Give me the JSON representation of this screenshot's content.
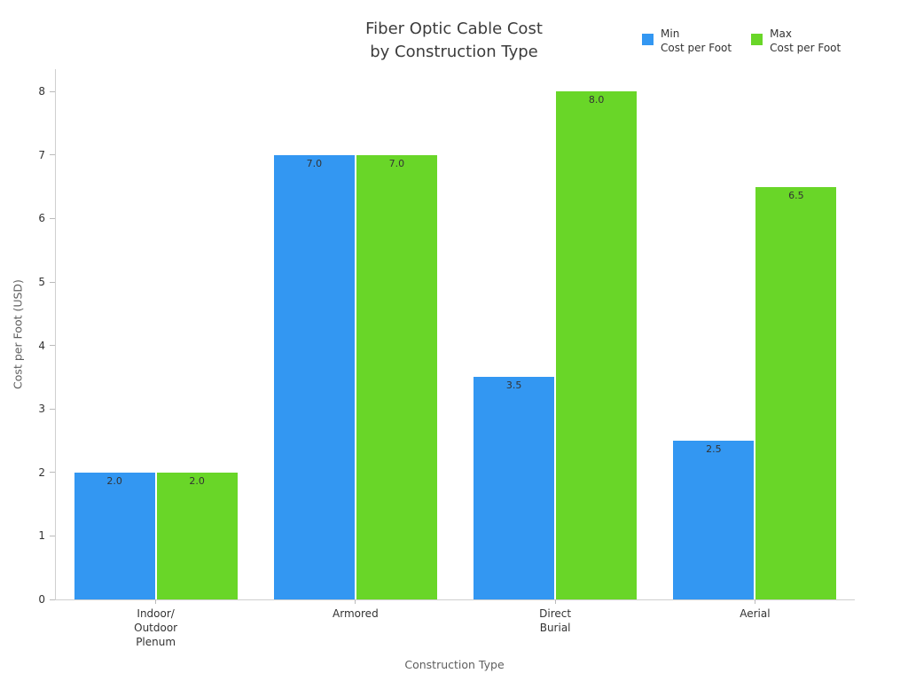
{
  "title": {
    "line1": "Fiber Optic Cable Cost",
    "line2": "by Construction Type"
  },
  "chart_data": {
    "type": "bar",
    "title": "Fiber Optic Cable Cost by Construction Type",
    "xlabel": "Construction Type",
    "ylabel": "Cost per Foot (USD)",
    "ylim": [
      0,
      8
    ],
    "yticks": [
      0,
      1,
      2,
      3,
      4,
      5,
      6,
      7,
      8
    ],
    "grid": false,
    "legend_position": "top-right",
    "categories": [
      "Indoor/\nOutdoor\nPlenum",
      "Armored",
      "Direct\nBurial",
      "Aerial"
    ],
    "series": [
      {
        "name": "Min Cost per Foot",
        "legend_lines": [
          "Min",
          "Cost per Foot"
        ],
        "color": "#3397f2",
        "values": [
          2.0,
          7.0,
          3.5,
          2.5
        ],
        "labels": [
          "2.0",
          "7.0",
          "3.5",
          "2.5"
        ]
      },
      {
        "name": "Max Cost per Foot",
        "legend_lines": [
          "Max",
          "Cost per Foot"
        ],
        "color": "#69d628",
        "values": [
          2.0,
          7.0,
          8.0,
          6.5
        ],
        "labels": [
          "2.0",
          "7.0",
          "8.0",
          "6.5"
        ]
      }
    ]
  }
}
